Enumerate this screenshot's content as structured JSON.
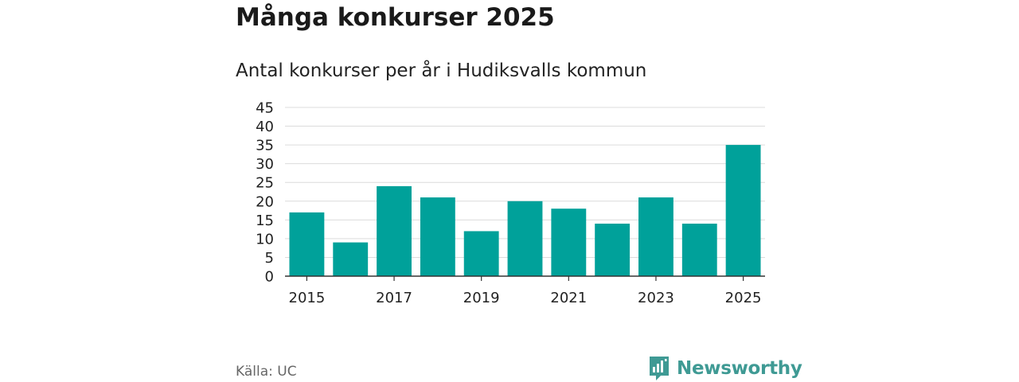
{
  "header": {
    "title": "Många konkurser 2025",
    "subtitle": "Antal konkurser per år i Hudiksvalls kommun"
  },
  "chart_data": {
    "type": "bar",
    "title": "Många konkurser 2025",
    "subtitle": "Antal konkurser per år i Hudiksvalls kommun",
    "categories": [
      "2015",
      "2016",
      "2017",
      "2018",
      "2019",
      "2020",
      "2021",
      "2022",
      "2023",
      "2024",
      "2025"
    ],
    "values": [
      17,
      9,
      24,
      21,
      12,
      20,
      18,
      14,
      21,
      14,
      35
    ],
    "x_tick_labels": [
      "2015",
      "2017",
      "2019",
      "2021",
      "2023",
      "2025"
    ],
    "y_ticks": [
      0,
      5,
      10,
      15,
      20,
      25,
      30,
      35,
      40,
      45
    ],
    "ylim": [
      0,
      45
    ],
    "xlabel": "",
    "ylabel": "",
    "grid": true,
    "legend": "none",
    "bar_color": "#00a19a"
  },
  "footer": {
    "source": "Källa: UC",
    "brand": "Newsworthy",
    "brand_icon": "newsworthy-logo-icon",
    "brand_color": "#3f9a94"
  }
}
